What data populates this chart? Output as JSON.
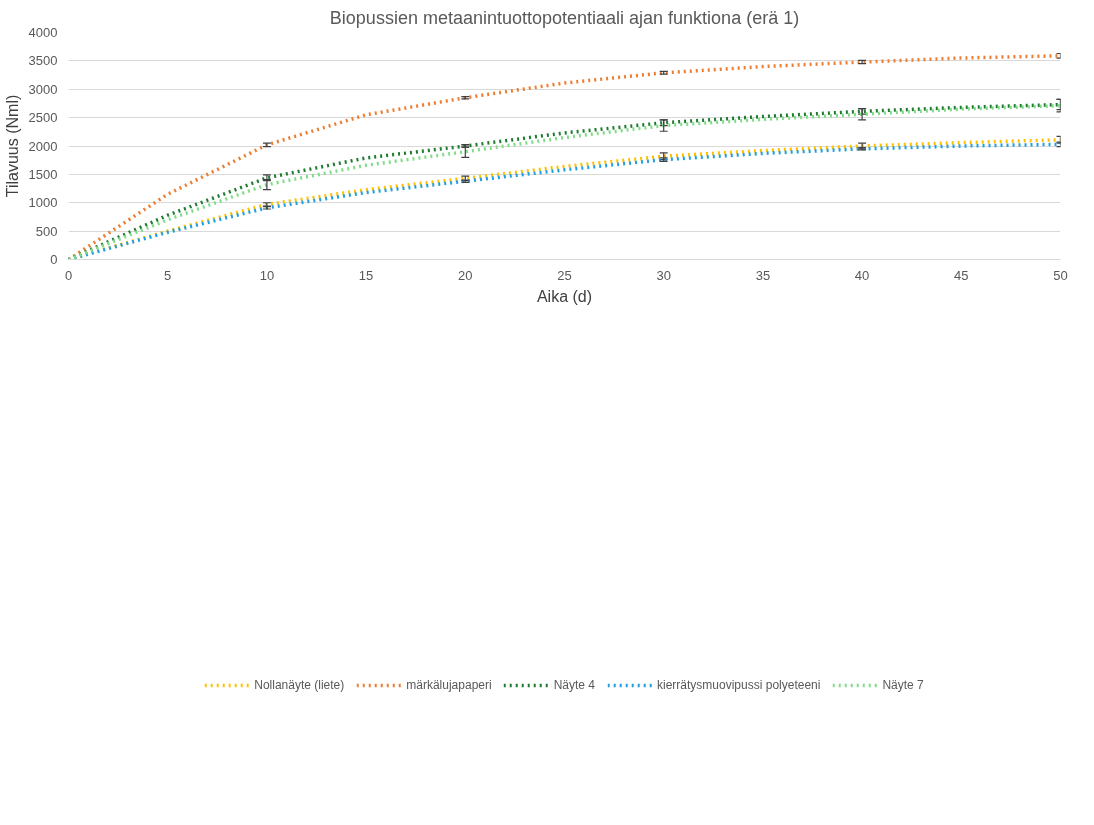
{
  "chart_data": {
    "type": "line",
    "title": "Biopussien metaanintuottopotentiaali ajan funktiona (erä 1)",
    "xlabel": "Aika (d)",
    "ylabel": "Tilavuus (Nml)",
    "x": [
      0,
      5,
      10,
      15,
      20,
      25,
      30,
      35,
      40,
      45,
      50
    ],
    "series": [
      {
        "name": "Nollanäyte (liete)",
        "color": "#ffc000",
        "values": [
          0,
          500,
          970,
          1230,
          1430,
          1640,
          1820,
          1920,
          2000,
          2060,
          2110
        ],
        "errors": [
          null,
          null,
          30,
          null,
          40,
          null,
          60,
          null,
          50,
          null,
          60
        ]
      },
      {
        "name": "märkälujapaperi",
        "color": "#ed7d31",
        "values": [
          0,
          1150,
          2020,
          2550,
          2850,
          3110,
          3290,
          3400,
          3480,
          3550,
          3590
        ],
        "errors": [
          null,
          null,
          30,
          null,
          20,
          null,
          25,
          null,
          30,
          null,
          40
        ]
      },
      {
        "name": "Näyte 4",
        "color": "#1e7b30",
        "values": [
          0,
          780,
          1440,
          1790,
          2000,
          2230,
          2410,
          2520,
          2610,
          2680,
          2730
        ],
        "errors": [
          null,
          null,
          50,
          null,
          25,
          null,
          50,
          null,
          50,
          null,
          90
        ]
      },
      {
        "name": "kierrätysmuovipussi polyeteeni",
        "color": "#20a0e0",
        "values": [
          0,
          480,
          910,
          1180,
          1380,
          1580,
          1760,
          1870,
          1950,
          2000,
          2030
        ],
        "errors": [
          null,
          null,
          20,
          null,
          20,
          null,
          30,
          null,
          20,
          null,
          40
        ]
      },
      {
        "name": "Näyte 7",
        "color": "#80dc88",
        "values": [
          0,
          700,
          1320,
          1660,
          1900,
          2150,
          2360,
          2470,
          2560,
          2650,
          2710
        ],
        "errors": [
          null,
          null,
          90,
          null,
          100,
          null,
          100,
          null,
          100,
          null,
          110
        ]
      }
    ],
    "xlim": [
      0,
      50
    ],
    "xticks": [
      0,
      5,
      10,
      15,
      20,
      25,
      30,
      35,
      40,
      45,
      50
    ],
    "ylim": [
      0,
      4000
    ],
    "yticks": [
      0,
      500,
      1000,
      1500,
      2000,
      2500,
      3000,
      3500,
      4000
    ],
    "grid": "y",
    "legend": "bottom",
    "line_style": "dotted",
    "marker": "none"
  }
}
